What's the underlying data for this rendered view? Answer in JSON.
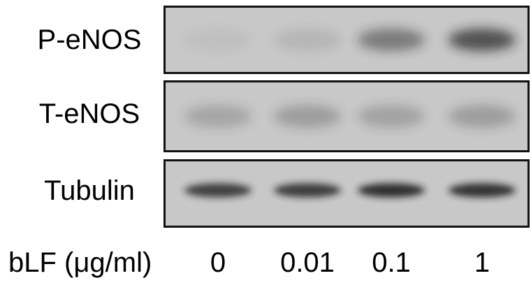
{
  "blot": {
    "rows": [
      {
        "label": "P-eNOS",
        "intensities": [
          0.05,
          0.1,
          0.45,
          0.7
        ]
      },
      {
        "label": "T-eNOS",
        "intensities": [
          0.2,
          0.25,
          0.22,
          0.25
        ]
      },
      {
        "label": "Tubulin",
        "intensities": [
          0.8,
          0.82,
          0.9,
          0.88
        ]
      }
    ],
    "condition_label": "bLF (μg/ml)",
    "lanes": [
      "0",
      "0.01",
      "0.1",
      "1"
    ],
    "colors": {
      "background": "#c8c8c8",
      "band": "#1a1a1a",
      "border": "#111111"
    }
  }
}
